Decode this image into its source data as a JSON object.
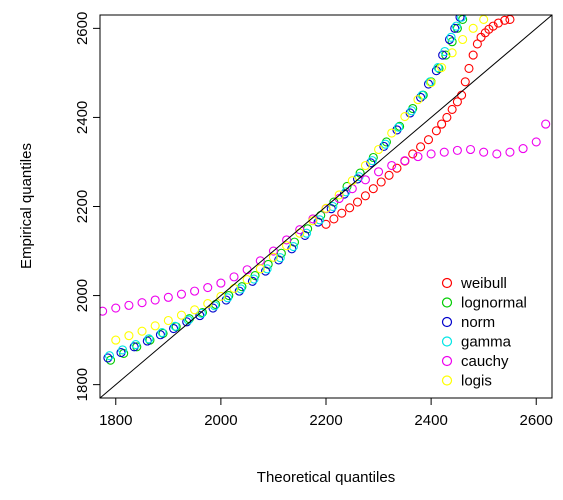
{
  "chart_data": {
    "type": "scatter",
    "title": "",
    "xlabel": "Theoretical quantiles",
    "ylabel": "Empirical quantiles",
    "xlim": [
      1770,
      2630
    ],
    "ylim": [
      1770,
      2630
    ],
    "xticks": [
      1800,
      2000,
      2200,
      2400,
      2600
    ],
    "yticks": [
      1800,
      2000,
      2200,
      2400,
      2600
    ],
    "grid": false,
    "reference_line": "y = x",
    "marker": "open-circle",
    "legend_position": "bottom-right",
    "series": [
      {
        "name": "weibull",
        "color": "#ff0000",
        "points": [
          [
            2200,
            2160
          ],
          [
            2215,
            2172
          ],
          [
            2230,
            2185
          ],
          [
            2245,
            2197
          ],
          [
            2260,
            2210
          ],
          [
            2275,
            2224
          ],
          [
            2290,
            2240
          ],
          [
            2305,
            2255
          ],
          [
            2320,
            2270
          ],
          [
            2335,
            2286
          ],
          [
            2350,
            2302
          ],
          [
            2365,
            2318
          ],
          [
            2380,
            2334
          ],
          [
            2395,
            2350
          ],
          [
            2410,
            2370
          ],
          [
            2420,
            2385
          ],
          [
            2430,
            2400
          ],
          [
            2440,
            2418
          ],
          [
            2450,
            2435
          ],
          [
            2458,
            2450
          ],
          [
            2465,
            2480
          ],
          [
            2472,
            2510
          ],
          [
            2480,
            2540
          ],
          [
            2488,
            2565
          ],
          [
            2495,
            2580
          ],
          [
            2503,
            2590
          ],
          [
            2510,
            2598
          ],
          [
            2518,
            2605
          ],
          [
            2528,
            2612
          ],
          [
            2540,
            2618
          ],
          [
            2550,
            2620
          ]
        ]
      },
      {
        "name": "lognormal",
        "color": "#00cc00",
        "points": [
          [
            1790,
            1855
          ],
          [
            1815,
            1870
          ],
          [
            1840,
            1885
          ],
          [
            1865,
            1900
          ],
          [
            1890,
            1915
          ],
          [
            1915,
            1930
          ],
          [
            1940,
            1948
          ],
          [
            1965,
            1962
          ],
          [
            1990,
            1980
          ],
          [
            2015,
            2000
          ],
          [
            2040,
            2020
          ],
          [
            2065,
            2045
          ],
          [
            2090,
            2070
          ],
          [
            2115,
            2095
          ],
          [
            2140,
            2120
          ],
          [
            2165,
            2150
          ],
          [
            2190,
            2180
          ],
          [
            2215,
            2210
          ],
          [
            2240,
            2245
          ],
          [
            2265,
            2275
          ],
          [
            2290,
            2310
          ],
          [
            2315,
            2345
          ],
          [
            2340,
            2380
          ],
          [
            2365,
            2420
          ],
          [
            2385,
            2450
          ],
          [
            2400,
            2480
          ],
          [
            2415,
            2510
          ],
          [
            2428,
            2540
          ],
          [
            2440,
            2570
          ],
          [
            2450,
            2600
          ],
          [
            2460,
            2620
          ]
        ]
      },
      {
        "name": "norm",
        "color": "#0000cc",
        "points": [
          [
            1785,
            1860
          ],
          [
            1810,
            1872
          ],
          [
            1835,
            1885
          ],
          [
            1860,
            1898
          ],
          [
            1885,
            1912
          ],
          [
            1910,
            1926
          ],
          [
            1935,
            1941
          ],
          [
            1960,
            1955
          ],
          [
            1985,
            1972
          ],
          [
            2010,
            1990
          ],
          [
            2035,
            2010
          ],
          [
            2060,
            2032
          ],
          [
            2085,
            2055
          ],
          [
            2110,
            2080
          ],
          [
            2135,
            2105
          ],
          [
            2160,
            2135
          ],
          [
            2185,
            2165
          ],
          [
            2210,
            2195
          ],
          [
            2235,
            2228
          ],
          [
            2260,
            2262
          ],
          [
            2285,
            2298
          ],
          [
            2310,
            2335
          ],
          [
            2335,
            2372
          ],
          [
            2360,
            2410
          ],
          [
            2380,
            2445
          ],
          [
            2395,
            2475
          ],
          [
            2410,
            2505
          ],
          [
            2422,
            2540
          ],
          [
            2435,
            2575
          ],
          [
            2445,
            2600
          ],
          [
            2455,
            2625
          ]
        ]
      },
      {
        "name": "gamma",
        "color": "#00e5e5",
        "points": [
          [
            1788,
            1865
          ],
          [
            1813,
            1878
          ],
          [
            1838,
            1890
          ],
          [
            1863,
            1903
          ],
          [
            1888,
            1917
          ],
          [
            1913,
            1931
          ],
          [
            1938,
            1945
          ],
          [
            1963,
            1960
          ],
          [
            1988,
            1977
          ],
          [
            2013,
            1995
          ],
          [
            2038,
            2015
          ],
          [
            2063,
            2037
          ],
          [
            2088,
            2060
          ],
          [
            2113,
            2085
          ],
          [
            2138,
            2110
          ],
          [
            2163,
            2140
          ],
          [
            2188,
            2170
          ],
          [
            2213,
            2200
          ],
          [
            2238,
            2233
          ],
          [
            2263,
            2267
          ],
          [
            2288,
            2303
          ],
          [
            2313,
            2340
          ],
          [
            2338,
            2378
          ],
          [
            2363,
            2415
          ],
          [
            2383,
            2450
          ],
          [
            2398,
            2480
          ],
          [
            2413,
            2512
          ],
          [
            2426,
            2548
          ],
          [
            2438,
            2580
          ],
          [
            2448,
            2605
          ],
          [
            2458,
            2625
          ]
        ]
      },
      {
        "name": "cauchy",
        "color": "#ee00ee",
        "points": [
          [
            1775,
            1965
          ],
          [
            1800,
            1972
          ],
          [
            1825,
            1978
          ],
          [
            1850,
            1984
          ],
          [
            1875,
            1990
          ],
          [
            1900,
            1996
          ],
          [
            1925,
            2003
          ],
          [
            1950,
            2010
          ],
          [
            1975,
            2018
          ],
          [
            2000,
            2028
          ],
          [
            2025,
            2042
          ],
          [
            2050,
            2058
          ],
          [
            2075,
            2078
          ],
          [
            2100,
            2100
          ],
          [
            2125,
            2125
          ],
          [
            2150,
            2148
          ],
          [
            2175,
            2172
          ],
          [
            2200,
            2195
          ],
          [
            2225,
            2218
          ],
          [
            2250,
            2240
          ],
          [
            2275,
            2260
          ],
          [
            2300,
            2278
          ],
          [
            2325,
            2292
          ],
          [
            2350,
            2303
          ],
          [
            2375,
            2312
          ],
          [
            2400,
            2318
          ],
          [
            2425,
            2322
          ],
          [
            2450,
            2326
          ],
          [
            2475,
            2328
          ],
          [
            2500,
            2322
          ],
          [
            2525,
            2318
          ],
          [
            2550,
            2322
          ],
          [
            2575,
            2330
          ],
          [
            2600,
            2345
          ],
          [
            2618,
            2385
          ]
        ]
      },
      {
        "name": "logis",
        "color": "#ffff00",
        "points": [
          [
            1800,
            1900
          ],
          [
            1825,
            1910
          ],
          [
            1850,
            1920
          ],
          [
            1875,
            1932
          ],
          [
            1900,
            1944
          ],
          [
            1925,
            1956
          ],
          [
            1950,
            1968
          ],
          [
            1975,
            1982
          ],
          [
            2000,
            1998
          ],
          [
            2025,
            2016
          ],
          [
            2050,
            2036
          ],
          [
            2075,
            2060
          ],
          [
            2100,
            2086
          ],
          [
            2125,
            2112
          ],
          [
            2150,
            2140
          ],
          [
            2175,
            2168
          ],
          [
            2200,
            2196
          ],
          [
            2225,
            2226
          ],
          [
            2250,
            2258
          ],
          [
            2275,
            2292
          ],
          [
            2300,
            2328
          ],
          [
            2325,
            2365
          ],
          [
            2350,
            2402
          ],
          [
            2375,
            2440
          ],
          [
            2400,
            2478
          ],
          [
            2420,
            2512
          ],
          [
            2440,
            2545
          ],
          [
            2460,
            2575
          ],
          [
            2480,
            2600
          ],
          [
            2500,
            2620
          ]
        ]
      }
    ]
  }
}
